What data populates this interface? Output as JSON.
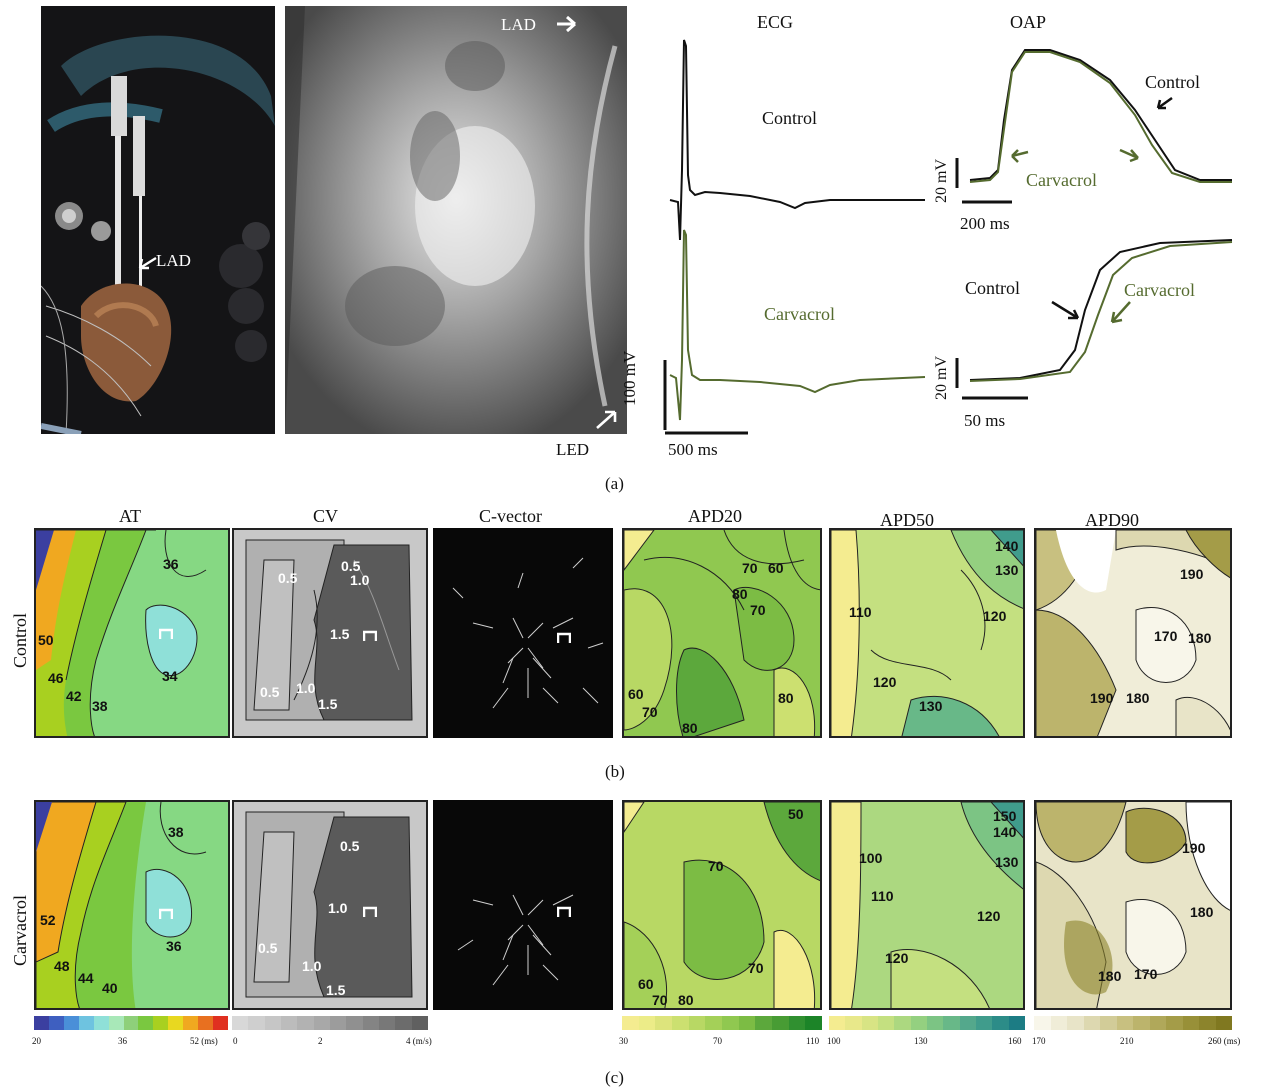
{
  "panel_a": {
    "photo_labels": {
      "lad_left": "LAD",
      "lad_right": "LAD",
      "led": "LED"
    },
    "ecg": {
      "title": "ECG",
      "control_label": "Control",
      "carvacrol_label": "Carvacrol",
      "scale_v": "100 mV",
      "scale_t": "500 ms"
    },
    "oap": {
      "title": "OAP",
      "top_control": "Control",
      "top_carvacrol": "Carvacrol",
      "top_scale_v": "20 mV",
      "top_scale_t": "200 ms",
      "bottom_control": "Control",
      "bottom_carvacrol": "Carvacrol",
      "bottom_scale_v": "20 mV",
      "bottom_scale_t": "50 ms"
    },
    "caption": "(a)"
  },
  "panel_b": {
    "row_label": "Control",
    "caption": "(b)",
    "titles": [
      "AT",
      "CV",
      "C-vector",
      "APD20",
      "APD50",
      "APD90"
    ],
    "at_labels": [
      "36",
      "50",
      "46",
      "42",
      "38",
      "34"
    ],
    "cv_labels": [
      "0.5",
      "0.5",
      "1.0",
      "1.5",
      "0.5",
      "1.0",
      "1.5"
    ],
    "apd20_labels": [
      "70",
      "60",
      "80",
      "70",
      "60",
      "70",
      "80",
      "80"
    ],
    "apd50_labels": [
      "140",
      "130",
      "110",
      "120",
      "120",
      "130"
    ],
    "apd90_labels": [
      "190",
      "180",
      "170",
      "190",
      "180"
    ]
  },
  "panel_c": {
    "row_label": "Carvacrol",
    "caption": "(c)",
    "at_labels": [
      "38",
      "52",
      "48",
      "44",
      "40",
      "36"
    ],
    "cv_labels": [
      "0.5",
      "1.0",
      "0.5",
      "1.0",
      "1.5"
    ],
    "apd20_labels": [
      "50",
      "70",
      "70",
      "60",
      "70",
      "80"
    ],
    "apd50_labels": [
      "150",
      "140",
      "100",
      "130",
      "110",
      "120",
      "120"
    ],
    "apd90_labels": [
      "190",
      "180",
      "180",
      "170"
    ]
  },
  "colorbars": {
    "at": {
      "ticks": [
        "20",
        "36",
        "52 (ms)"
      ],
      "colors": [
        "#3b3fa0",
        "#3e5fc0",
        "#4a8fd8",
        "#6ec3e0",
        "#8fe0d8",
        "#a8e8b8",
        "#8ed07a",
        "#7ac840",
        "#a8d020",
        "#e8d820",
        "#f0a820",
        "#e87020",
        "#e03020"
      ]
    },
    "cv": {
      "ticks": [
        "0",
        "2",
        "4 (m/s)"
      ],
      "colors": [
        "#d8d8d8",
        "#cfcfcf",
        "#c6c6c6",
        "#bcbcbc",
        "#b2b2b2",
        "#a8a8a8",
        "#9c9c9c",
        "#909090",
        "#848484",
        "#787878",
        "#6c6c6c",
        "#606060"
      ]
    },
    "apd20": {
      "ticks": [
        "30",
        "70",
        "110"
      ],
      "colors": [
        "#f4ec90",
        "#ecec88",
        "#dde47c",
        "#cce070",
        "#b8d864",
        "#a4d058",
        "#90c850",
        "#7cbc44",
        "#5ca83c",
        "#489c34",
        "#309030",
        "#1c8428"
      ]
    },
    "apd50": {
      "ticks": [
        "100",
        "130",
        "160"
      ],
      "colors": [
        "#f4ec90",
        "#e8e88a",
        "#d8e484",
        "#c4e080",
        "#acd880",
        "#94d080",
        "#7cc484",
        "#68b888",
        "#54a88c",
        "#409c8c",
        "#2c8c88",
        "#1c7c84"
      ]
    },
    "apd90": {
      "ticks": [
        "170",
        "210",
        "260 (ms)"
      ],
      "colors": [
        "#f8f6ea",
        "#f0edd8",
        "#e8e4c8",
        "#ddd8b0",
        "#d2cc98",
        "#c8c080",
        "#bcb46c",
        "#b0a85a",
        "#a49c48",
        "#989038",
        "#8c842c",
        "#807820"
      ]
    }
  }
}
